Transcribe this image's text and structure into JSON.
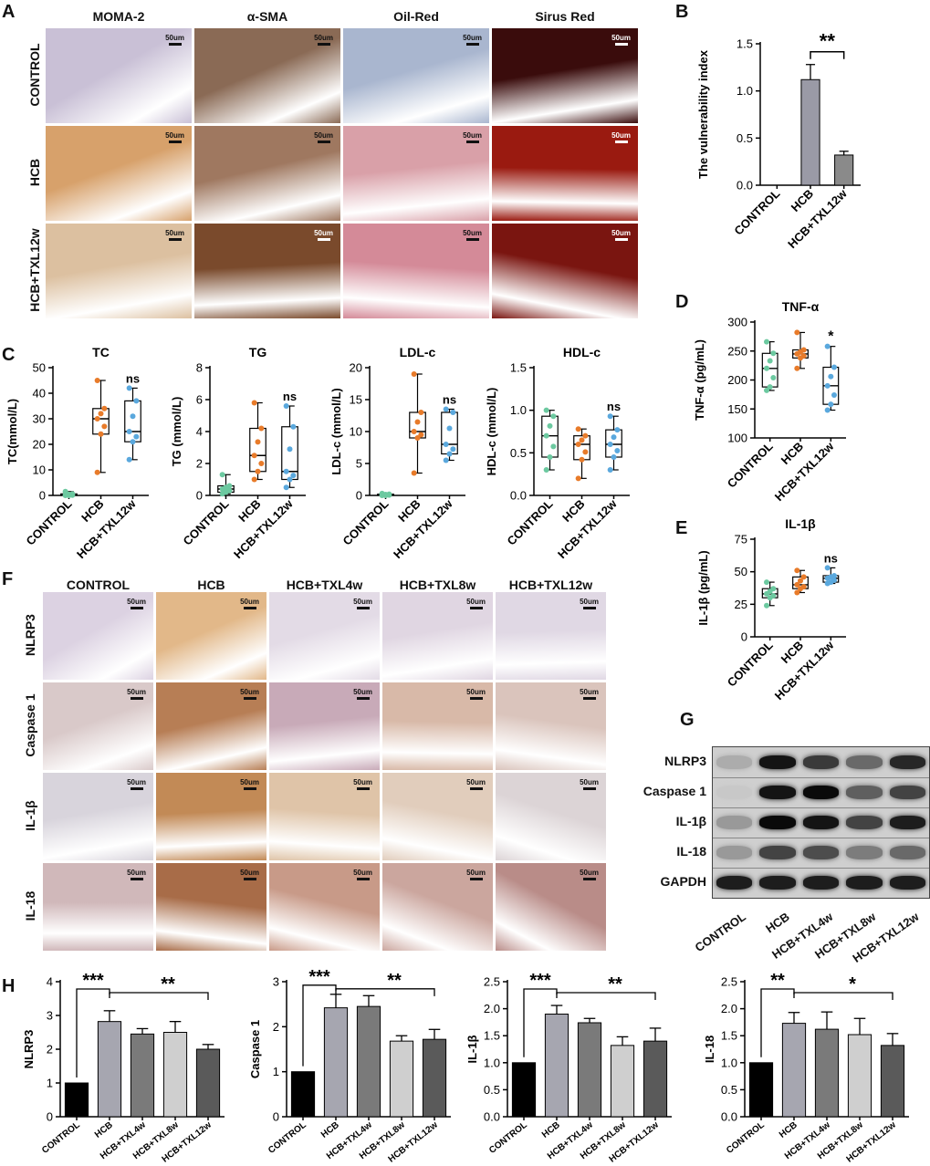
{
  "panels": {
    "A": "A",
    "B": "B",
    "C": "C",
    "D": "D",
    "E": "E",
    "F": "F",
    "G": "G",
    "H": "H"
  },
  "panel_A": {
    "columns": [
      "MOMA-2",
      "α-SMA",
      "Oil-Red",
      "Sirus Red"
    ],
    "rows": [
      "CONTROL",
      "HCB",
      "HCB+TXL12w"
    ],
    "scale_bar": "50um",
    "tile_colors": [
      [
        "#c9c0d6",
        "#8a6a55",
        "#a9b6cf",
        "#3a0c0c"
      ],
      [
        "#d7a16b",
        "#9f7860",
        "#d9a0a8",
        "#9a1a10"
      ],
      [
        "#dcc0a0",
        "#7a4a2c",
        "#d48a98",
        "#7a1510"
      ]
    ]
  },
  "panel_F": {
    "columns": [
      "CONTROL",
      "HCB",
      "HCB+TXL4w",
      "HCB+TXL8w",
      "HCB+TXL12w"
    ],
    "rows": [
      "NLRP3",
      "Caspase 1",
      "IL-1β",
      "IL-18"
    ],
    "scale_bar": "50um",
    "tile_colors": [
      [
        "#dcd2e2",
        "#e2b889",
        "#e3dbe6",
        "#e0d6e2",
        "#e0d8e4"
      ],
      [
        "#d9c9c9",
        "#b77e55",
        "#c8aab8",
        "#d8b9a8",
        "#dac4bc"
      ],
      [
        "#d8d4dc",
        "#c28a56",
        "#dfc4a8",
        "#e1cdbc",
        "#dcd4d6"
      ],
      [
        "#d0b8ba",
        "#a86c48",
        "#c89a88",
        "#cba69e",
        "#b98c88"
      ]
    ]
  },
  "panel_G": {
    "rows": [
      "NLRP3",
      "Caspase 1",
      "IL-1β",
      "IL-18",
      "GAPDH"
    ],
    "lanes": [
      "CONTROL",
      "HCB",
      "HCB+TXL4w",
      "HCB+TXL8w",
      "HCB+TXL12w"
    ],
    "band_intensity": [
      [
        0.15,
        0.95,
        0.75,
        0.5,
        0.85
      ],
      [
        0.0,
        0.95,
        1.0,
        0.55,
        0.7
      ],
      [
        0.25,
        1.0,
        0.95,
        0.7,
        0.9
      ],
      [
        0.25,
        0.7,
        0.65,
        0.4,
        0.5
      ],
      [
        0.9,
        0.9,
        0.9,
        0.9,
        0.9
      ]
    ]
  },
  "chart_data": [
    {
      "id": "B",
      "type": "bar",
      "ylabel": "The vulnerability index",
      "categories": [
        "CONTROL",
        "HCB",
        "HCB+TXL12w"
      ],
      "values": [
        0,
        1.12,
        0.32
      ],
      "errors": [
        0,
        0.16,
        0.04
      ],
      "colors": [
        "#9a9aa6",
        "#9a9aa6",
        "#8a8a8a"
      ],
      "ylim": [
        0,
        1.5
      ],
      "yticks": [
        "0.0",
        "0.5",
        "1.0",
        "1.5"
      ],
      "annotation": "**"
    },
    {
      "id": "C1",
      "type": "box",
      "title": "TC",
      "ylabel": "TC(mmol/L)",
      "categories": [
        "CONTROL",
        "HCB",
        "HCB+TXL12w"
      ],
      "boxes": [
        [
          0,
          0,
          0.2,
          0.6,
          1.5
        ],
        [
          9,
          24,
          30,
          34,
          45
        ],
        [
          14,
          21,
          25,
          37,
          42
        ]
      ],
      "ylim": [
        0,
        50
      ],
      "yticks": [
        "0",
        "10",
        "20",
        "30",
        "40",
        "50"
      ],
      "annotation": "ns"
    },
    {
      "id": "C2",
      "type": "box",
      "title": "TG",
      "ylabel": "TG (mmol/L)",
      "categories": [
        "CONTROL",
        "HCB",
        "HCB+TXL12w"
      ],
      "boxes": [
        [
          0.1,
          0.2,
          0.4,
          0.6,
          1.3
        ],
        [
          1.0,
          1.5,
          2.5,
          4.2,
          5.8
        ],
        [
          0.5,
          1.0,
          1.5,
          4.3,
          5.6
        ]
      ],
      "ylim": [
        0,
        8
      ],
      "yticks": [
        "0",
        "2",
        "4",
        "6",
        "8"
      ],
      "annotation": "ns"
    },
    {
      "id": "C3",
      "type": "box",
      "title": "LDL-c",
      "ylabel": "LDL-c (mmol/L)",
      "categories": [
        "CONTROL",
        "HCB",
        "HCB+TXL12w"
      ],
      "boxes": [
        [
          0,
          0,
          0.1,
          0.2,
          0.3
        ],
        [
          3.5,
          9,
          10,
          13,
          19
        ],
        [
          5.5,
          6.5,
          8,
          13,
          13.5
        ]
      ],
      "ylim": [
        0,
        20
      ],
      "yticks": [
        "0",
        "5",
        "10",
        "15",
        "20"
      ],
      "annotation": "ns"
    },
    {
      "id": "C4",
      "type": "box",
      "title": "HDL-c",
      "ylabel": "HDL-c (mmol/L)",
      "categories": [
        "CONTROL",
        "HCB",
        "HCB+TXL12w"
      ],
      "boxes": [
        [
          0.3,
          0.45,
          0.7,
          0.93,
          1.0
        ],
        [
          0.2,
          0.42,
          0.6,
          0.7,
          0.78
        ],
        [
          0.3,
          0.45,
          0.6,
          0.77,
          0.93
        ]
      ],
      "ylim": [
        0,
        1.5
      ],
      "yticks": [
        "0.0",
        "0.5",
        "1.0",
        "1.5"
      ],
      "annotation": "ns"
    },
    {
      "id": "D",
      "type": "box",
      "title": "TNF-α",
      "ylabel": "TNF-α (pg/mL)",
      "categories": [
        "CONTROL",
        "HCB",
        "HCB+TXL12w"
      ],
      "boxes": [
        [
          182,
          188,
          220,
          246,
          266
        ],
        [
          220,
          238,
          245,
          252,
          282
        ],
        [
          148,
          158,
          190,
          222,
          258
        ]
      ],
      "ylim": [
        100,
        300
      ],
      "yticks": [
        "100",
        "150",
        "200",
        "250",
        "300"
      ],
      "annotation": "*"
    },
    {
      "id": "E",
      "type": "box",
      "title": "IL-1β",
      "ylabel": "IL-1β  (pg/mL)",
      "categories": [
        "CONTROL",
        "HCB",
        "HCB+TXL12w"
      ],
      "boxes": [
        [
          24,
          30,
          33,
          37,
          42
        ],
        [
          34,
          37,
          40,
          46,
          51
        ],
        [
          41,
          42,
          45,
          47,
          53
        ]
      ],
      "ylim": [
        0,
        75
      ],
      "yticks": [
        "0",
        "25",
        "50",
        "75"
      ],
      "annotation": "ns"
    },
    {
      "id": "H1",
      "type": "bar",
      "ylabel": "NLRP3",
      "categories": [
        "CONTROL",
        "HCB",
        "HCB+TXL4w",
        "HCB+TXL8w",
        "HCB+TXL12w"
      ],
      "values": [
        1.0,
        2.82,
        2.45,
        2.5,
        2.0
      ],
      "errors": [
        0,
        0.32,
        0.16,
        0.32,
        0.14
      ],
      "colors": [
        "#000000",
        "#a6a6b0",
        "#7a7a7a",
        "#cfcfcf",
        "#5a5a5a"
      ],
      "ylim": [
        0,
        4
      ],
      "yticks": [
        "0",
        "1",
        "2",
        "3",
        "4"
      ],
      "annotation": [
        "***",
        "**"
      ]
    },
    {
      "id": "H2",
      "type": "bar",
      "ylabel": "Caspase 1",
      "categories": [
        "CONTROL",
        "HCB",
        "HCB+TXL4w",
        "HCB+TXL8w",
        "HCB+TXL12w"
      ],
      "values": [
        1.0,
        2.42,
        2.45,
        1.68,
        1.72
      ],
      "errors": [
        0,
        0.3,
        0.24,
        0.12,
        0.22
      ],
      "colors": [
        "#000000",
        "#a6a6b0",
        "#7a7a7a",
        "#cfcfcf",
        "#5a5a5a"
      ],
      "ylim": [
        0,
        3
      ],
      "yticks": [
        "0",
        "1",
        "2",
        "3"
      ],
      "annotation": [
        "***",
        "**"
      ]
    },
    {
      "id": "H3",
      "type": "bar",
      "ylabel": "IL-1β",
      "categories": [
        "CONTROL",
        "HCB",
        "HCB+TXL4w",
        "HCB+TXL8w",
        "HCB+TXL12w"
      ],
      "values": [
        1.0,
        1.9,
        1.74,
        1.32,
        1.4
      ],
      "errors": [
        0,
        0.16,
        0.08,
        0.16,
        0.24
      ],
      "colors": [
        "#000000",
        "#a6a6b0",
        "#7a7a7a",
        "#cfcfcf",
        "#5a5a5a"
      ],
      "ylim": [
        0,
        2.5
      ],
      "yticks": [
        "0.0",
        "0.5",
        "1.0",
        "1.5",
        "2.0",
        "2.5"
      ],
      "annotation": [
        "***",
        "**"
      ]
    },
    {
      "id": "H4",
      "type": "bar",
      "ylabel": "IL-18",
      "categories": [
        "CONTROL",
        "HCB",
        "HCB+TXL4w",
        "HCB+TXL8w",
        "HCB+TXL12w"
      ],
      "values": [
        1.0,
        1.73,
        1.62,
        1.52,
        1.32
      ],
      "errors": [
        0,
        0.2,
        0.32,
        0.3,
        0.22
      ],
      "colors": [
        "#000000",
        "#a6a6b0",
        "#7a7a7a",
        "#cfcfcf",
        "#5a5a5a"
      ],
      "ylim": [
        0,
        2.5
      ],
      "yticks": [
        "0.0",
        "0.5",
        "1.0",
        "1.5",
        "2.0",
        "2.5"
      ],
      "annotation": [
        "**",
        "*"
      ]
    }
  ]
}
